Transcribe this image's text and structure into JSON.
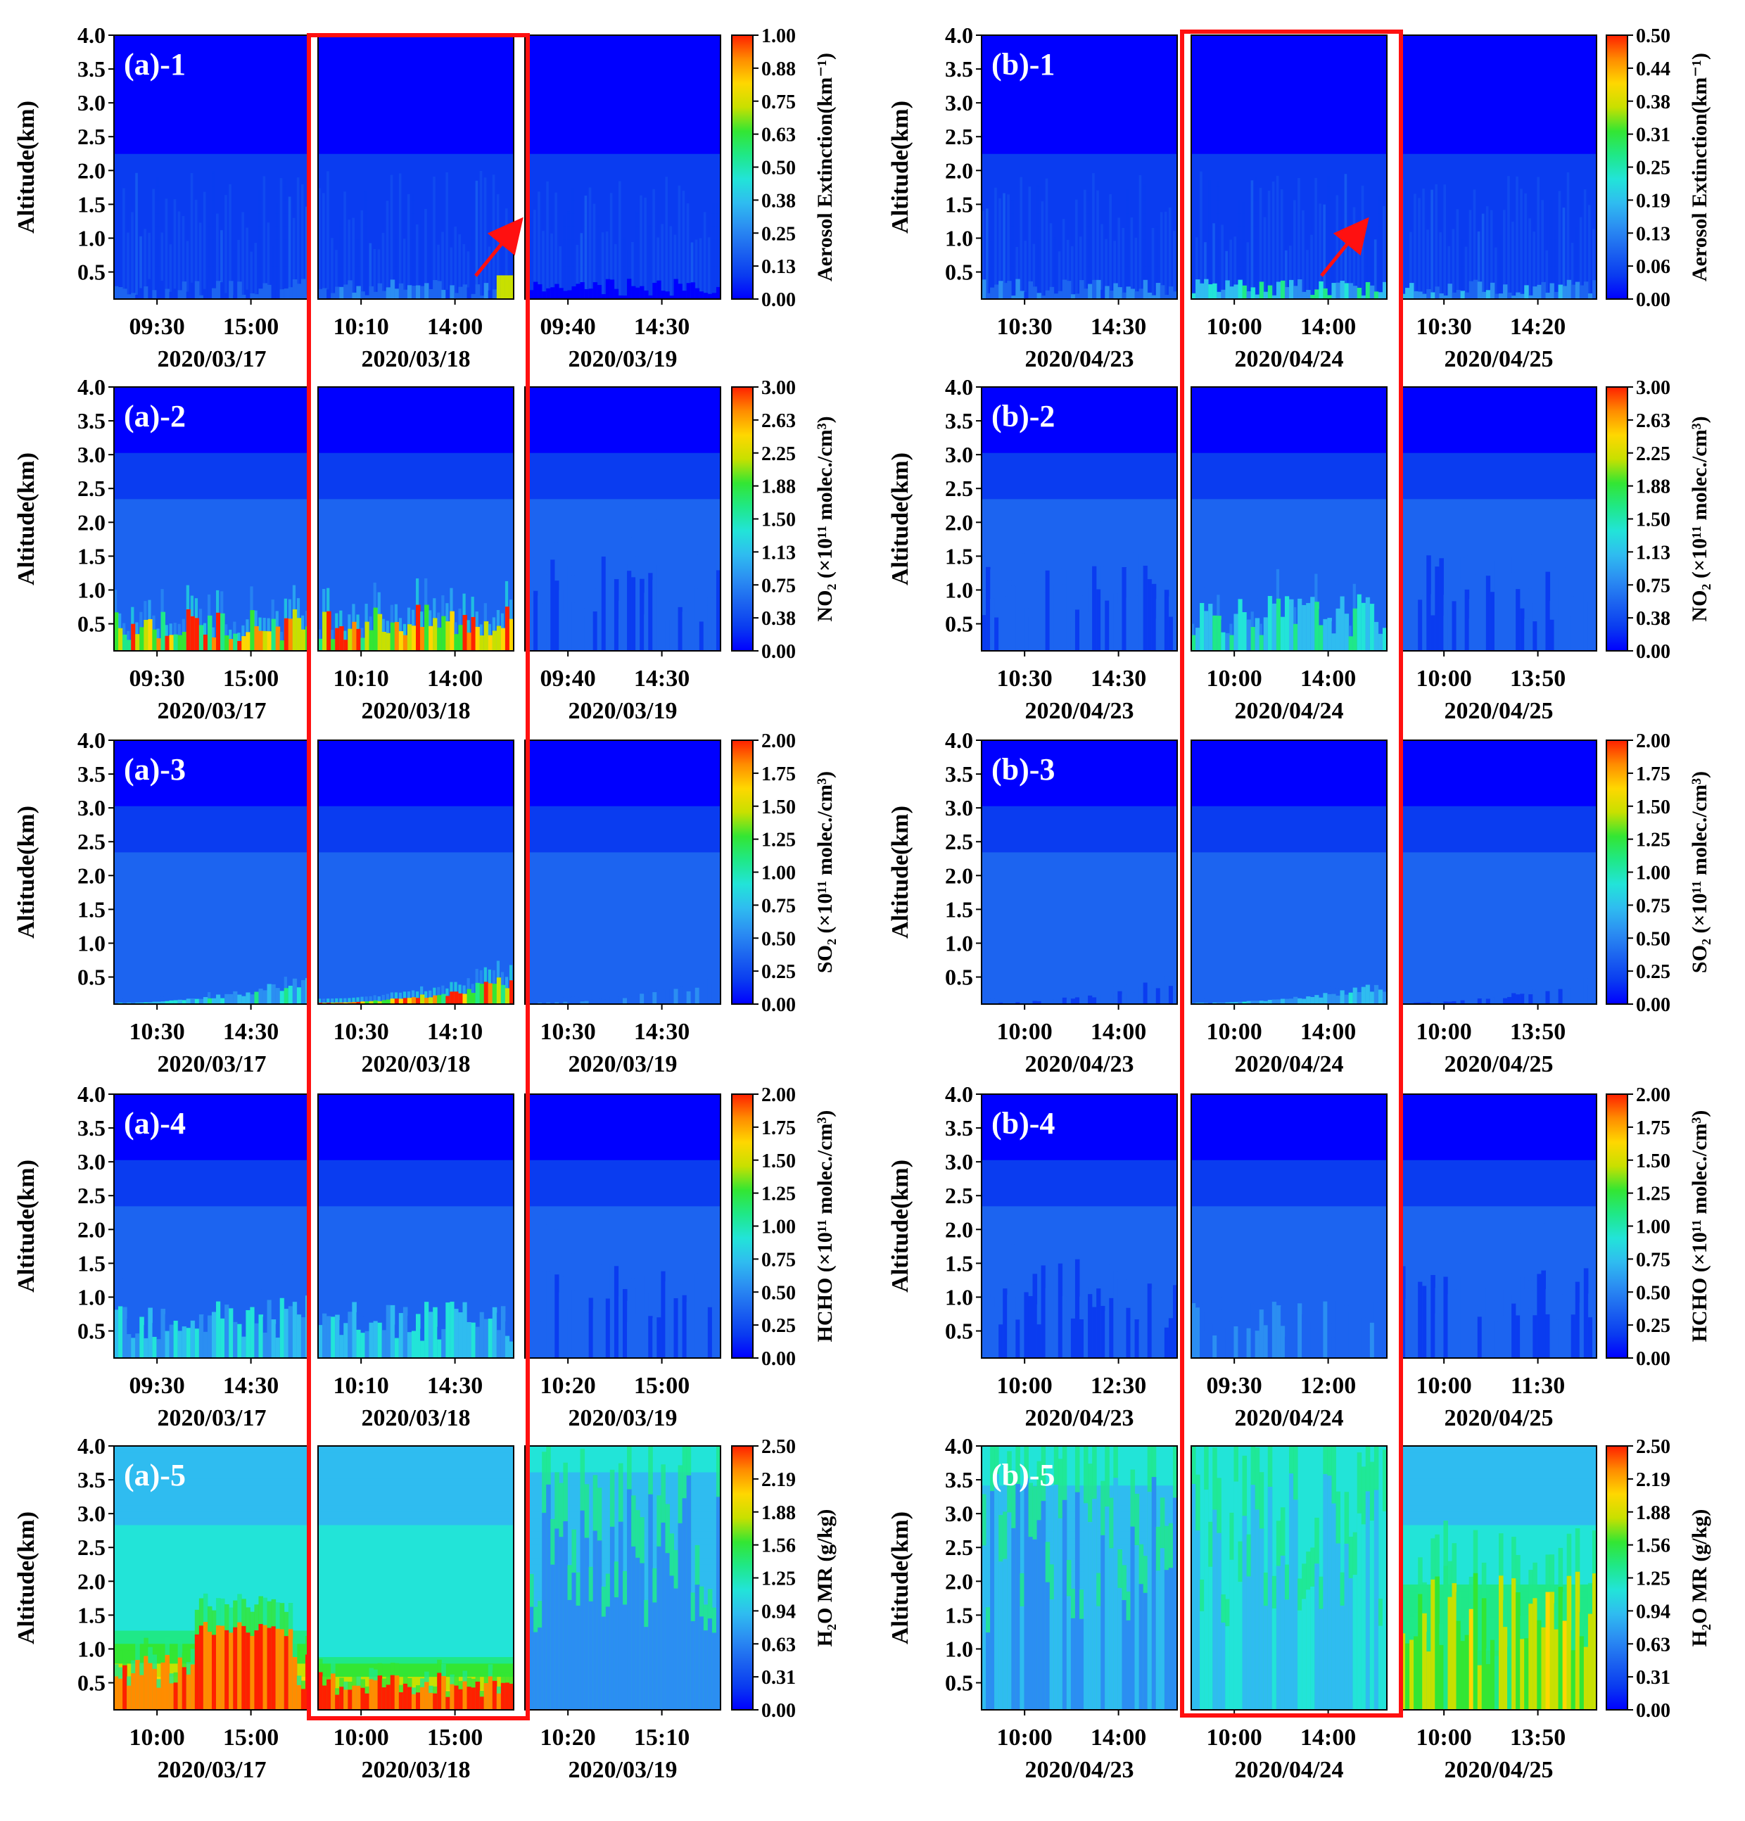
{
  "colors": {
    "colormap": [
      "#0000ff",
      "#0a3cf0",
      "#1c64f0",
      "#2b8ef2",
      "#2fbcf0",
      "#22e4d8",
      "#1fe888",
      "#33e633",
      "#c8e000",
      "#ffd700",
      "#ff8c00",
      "#ff2000"
    ],
    "low_background": "#1535f5",
    "highlight_box": "#ff1010",
    "panel_label": "#ffffff"
  },
  "y_ticks": [
    "4.0",
    "3.5",
    "3.0",
    "2.5",
    "2.0",
    "1.5",
    "1.0",
    "0.5"
  ],
  "y_label": "Altitude(km)",
  "rows": [
    {
      "colorbar_ticks": [
        "1.00",
        "0.88",
        "0.75",
        "0.63",
        "0.50",
        "0.38",
        "0.25",
        "0.13",
        "0.00"
      ],
      "colorbar_label": "Aerosol Extinction(km⁻¹)",
      "groups": [
        {
          "label": "(a)-1",
          "days": [
            {
              "date": "2020/03/17",
              "ticks": [
                "09:30",
                "15:00"
              ]
            },
            {
              "date": "2020/03/18",
              "ticks": [
                "10:10",
                "14:00"
              ]
            },
            {
              "date": "2020/03/19",
              "ticks": [
                "09:40",
                "14:30"
              ]
            }
          ]
        },
        {
          "label": "(b)-1",
          "colorbar_ticks": [
            "0.50",
            "0.44",
            "0.38",
            "0.31",
            "0.25",
            "0.19",
            "0.13",
            "0.06",
            "0.00"
          ],
          "days": [
            {
              "date": "2020/04/23",
              "ticks": [
                "10:30",
                "14:30"
              ]
            },
            {
              "date": "2020/04/24",
              "ticks": [
                "10:00",
                "14:00"
              ]
            },
            {
              "date": "2020/04/25",
              "ticks": [
                "10:30",
                "14:20"
              ]
            }
          ]
        }
      ]
    },
    {
      "colorbar_ticks": [
        "3.00",
        "2.63",
        "2.25",
        "1.88",
        "1.50",
        "1.13",
        "0.75",
        "0.38",
        "0.00"
      ],
      "colorbar_label": "NO₂ (×10¹¹ molec./cm³)",
      "groups": [
        {
          "label": "(a)-2",
          "days": [
            {
              "date": "2020/03/17",
              "ticks": [
                "09:30",
                "15:00"
              ]
            },
            {
              "date": "2020/03/18",
              "ticks": [
                "10:10",
                "14:00"
              ]
            },
            {
              "date": "2020/03/19",
              "ticks": [
                "09:40",
                "14:30"
              ]
            }
          ]
        },
        {
          "label": "(b)-2",
          "days": [
            {
              "date": "2020/04/23",
              "ticks": [
                "10:30",
                "14:30"
              ]
            },
            {
              "date": "2020/04/24",
              "ticks": [
                "10:00",
                "14:00"
              ]
            },
            {
              "date": "2020/04/25",
              "ticks": [
                "10:00",
                "13:50"
              ]
            }
          ]
        }
      ]
    },
    {
      "colorbar_ticks": [
        "2.00",
        "1.75",
        "1.50",
        "1.25",
        "1.00",
        "0.75",
        "0.50",
        "0.25",
        "0.00"
      ],
      "colorbar_label": "SO₂ (×10¹¹ molec./cm³)",
      "groups": [
        {
          "label": "(a)-3",
          "days": [
            {
              "date": "2020/03/17",
              "ticks": [
                "10:30",
                "14:30"
              ]
            },
            {
              "date": "2020/03/18",
              "ticks": [
                "10:30",
                "14:10"
              ]
            },
            {
              "date": "2020/03/19",
              "ticks": [
                "10:30",
                "14:30"
              ]
            }
          ]
        },
        {
          "label": "(b)-3",
          "days": [
            {
              "date": "2020/04/23",
              "ticks": [
                "10:00",
                "14:00"
              ]
            },
            {
              "date": "2020/04/24",
              "ticks": [
                "10:00",
                "14:00"
              ]
            },
            {
              "date": "2020/04/25",
              "ticks": [
                "10:00",
                "13:50"
              ]
            }
          ]
        }
      ]
    },
    {
      "colorbar_ticks": [
        "2.00",
        "1.75",
        "1.50",
        "1.25",
        "1.00",
        "0.75",
        "0.50",
        "0.25",
        "0.00"
      ],
      "colorbar_label": "HCHO (×10¹¹ molec./cm³)",
      "groups": [
        {
          "label": "(a)-4",
          "days": [
            {
              "date": "2020/03/17",
              "ticks": [
                "09:30",
                "14:30"
              ]
            },
            {
              "date": "2020/03/18",
              "ticks": [
                "10:10",
                "14:30"
              ]
            },
            {
              "date": "2020/03/19",
              "ticks": [
                "10:20",
                "15:00"
              ]
            }
          ]
        },
        {
          "label": "(b)-4",
          "days": [
            {
              "date": "2020/04/23",
              "ticks": [
                "10:00",
                "12:30"
              ]
            },
            {
              "date": "2020/04/24",
              "ticks": [
                "09:30",
                "12:00"
              ]
            },
            {
              "date": "2020/04/25",
              "ticks": [
                "10:00",
                "11:30"
              ]
            }
          ]
        }
      ]
    },
    {
      "colorbar_ticks": [
        "2.50",
        "2.19",
        "1.88",
        "1.56",
        "1.25",
        "0.94",
        "0.63",
        "0.31",
        "0.00"
      ],
      "colorbar_label": "H₂O MR (g/kg)",
      "groups": [
        {
          "label": "(a)-5",
          "days": [
            {
              "date": "2020/03/17",
              "ticks": [
                "10:00",
                "15:00"
              ]
            },
            {
              "date": "2020/03/18",
              "ticks": [
                "10:00",
                "15:00"
              ]
            },
            {
              "date": "2020/03/19",
              "ticks": [
                "10:20",
                "15:10"
              ]
            }
          ]
        },
        {
          "label": "(b)-5",
          "days": [
            {
              "date": "2020/04/23",
              "ticks": [
                "10:00",
                "14:00"
              ]
            },
            {
              "date": "2020/04/24",
              "ticks": [
                "10:00",
                "14:00"
              ]
            },
            {
              "date": "2020/04/25",
              "ticks": [
                "10:00",
                "13:50"
              ]
            }
          ]
        }
      ]
    }
  ],
  "chart_data": {
    "type": "heatmap",
    "description_axes": {
      "y": "Altitude(km)",
      "ylim": [
        0.1,
        4.0
      ]
    },
    "highlighted_days": [
      "2020/03/18",
      "2020/04/24"
    ],
    "panels": [
      {
        "label": "(a)-1",
        "variable": "Aerosol Extinction",
        "zlim": [
          0,
          1.0
        ],
        "days": [
          {
            "date": "2020/03/17",
            "profile_level_low": [
              0.15,
              0.1,
              0.05
            ],
            "notes": "near-surface values ~0.1-0.2 below 0.3 km"
          },
          {
            "date": "2020/03/18",
            "profile_level_low": [
              0.2,
              0.1,
              0.05
            ],
            "notes": "surface up to ~0.6 late afternoon, rising plume to ~1.2 km"
          },
          {
            "date": "2020/03/19",
            "profile_level_low": [
              0.02,
              0.01,
              0.0
            ]
          }
        ]
      },
      {
        "label": "(b)-1",
        "variable": "Aerosol Extinction",
        "zlim": [
          0,
          0.5
        ],
        "days": [
          {
            "date": "2020/04/23",
            "profile_level_low": [
              0.1,
              0.05,
              0.02
            ]
          },
          {
            "date": "2020/04/24",
            "profile_level_low": [
              0.2,
              0.12,
              0.06
            ],
            "notes": "enhancement up to ~1.3 km in afternoon"
          },
          {
            "date": "2020/04/25",
            "profile_level_low": [
              0.12,
              0.05,
              0.02
            ]
          }
        ]
      },
      {
        "label": "(a)-2",
        "variable": "NO2",
        "zlim": [
          0,
          3.0
        ],
        "days": [
          {
            "date": "2020/03/17",
            "surface_max": 3.0,
            "layer_top_km": 0.7
          },
          {
            "date": "2020/03/18",
            "surface_max": 3.0,
            "layer_top_km": 0.75
          },
          {
            "date": "2020/03/19",
            "surface_max": 0.6,
            "layer_top_km": 1.5
          }
        ]
      },
      {
        "label": "(b)-2",
        "variable": "NO2",
        "zlim": [
          0,
          3.0
        ],
        "days": [
          {
            "date": "2020/04/23",
            "surface_max": 0.6,
            "layer_top_km": 1.5
          },
          {
            "date": "2020/04/24",
            "surface_max": 1.6,
            "layer_top_km": 0.9
          },
          {
            "date": "2020/04/25",
            "surface_max": 0.6,
            "layer_top_km": 1.5
          }
        ]
      },
      {
        "label": "(a)-3",
        "variable": "SO2",
        "zlim": [
          0,
          2.0
        ],
        "days": [
          {
            "date": "2020/03/17",
            "surface_max": 1.0,
            "layer_top_km": 0.5
          },
          {
            "date": "2020/03/18",
            "surface_max": 2.0,
            "layer_top_km": 0.5
          },
          {
            "date": "2020/03/19",
            "surface_max": 0.5,
            "layer_top_km": 0.5
          }
        ]
      },
      {
        "label": "(b)-3",
        "variable": "SO2",
        "zlim": [
          0,
          2.0
        ],
        "days": [
          {
            "date": "2020/04/23",
            "surface_max": 0.4,
            "layer_top_km": 0.5
          },
          {
            "date": "2020/04/24",
            "surface_max": 0.8,
            "layer_top_km": 0.4
          },
          {
            "date": "2020/04/25",
            "surface_max": 0.4,
            "layer_top_km": 0.5
          }
        ]
      },
      {
        "label": "(a)-4",
        "variable": "HCHO",
        "zlim": [
          0,
          2.0
        ],
        "days": [
          {
            "date": "2020/03/17",
            "surface_max": 0.9,
            "layer_top_km": 1.0
          },
          {
            "date": "2020/03/18",
            "surface_max": 0.9,
            "layer_top_km": 0.9
          },
          {
            "date": "2020/03/19",
            "surface_max": 0.4,
            "layer_top_km": 1.5
          }
        ]
      },
      {
        "label": "(b)-4",
        "variable": "HCHO",
        "zlim": [
          0,
          2.0
        ],
        "days": [
          {
            "date": "2020/04/23",
            "surface_max": 0.35,
            "layer_top_km": 1.5
          },
          {
            "date": "2020/04/24",
            "surface_max": 0.5,
            "layer_top_km": 1.0
          },
          {
            "date": "2020/04/25",
            "surface_max": 0.35,
            "layer_top_km": 1.5
          }
        ]
      },
      {
        "label": "(a)-5",
        "variable": "H2O MR",
        "zlim": [
          0,
          2.5
        ],
        "days": [
          {
            "date": "2020/03/17",
            "surface_max": 2.5,
            "layer_top_km": 1.4
          },
          {
            "date": "2020/03/18",
            "surface_max": 2.5,
            "layer_top_km": 1.0
          },
          {
            "date": "2020/03/19",
            "surface_max": 0.7,
            "layer_top_km": 4.0
          }
        ]
      },
      {
        "label": "(b)-5",
        "variable": "H2O MR",
        "zlim": [
          0,
          2.5
        ],
        "days": [
          {
            "date": "2020/04/23",
            "surface_max": 0.8,
            "layer_top_km": 4.0
          },
          {
            "date": "2020/04/24",
            "surface_max": 1.0,
            "layer_top_km": 4.0
          },
          {
            "date": "2020/04/25",
            "surface_max": 1.7,
            "layer_top_km": 2.5
          }
        ]
      }
    ]
  }
}
